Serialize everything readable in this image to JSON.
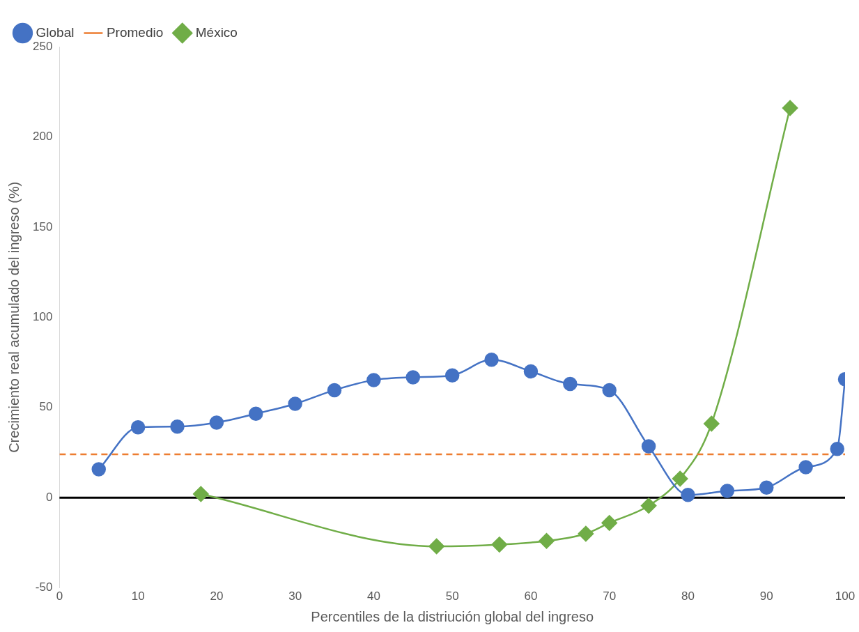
{
  "chart_data": {
    "type": "line",
    "xlabel": "Percentiles de la distriución global del ingreso",
    "ylabel": "Crecimiento real acumulado del ingreso (%)",
    "xlim": [
      0,
      100
    ],
    "xticks": [
      0,
      10,
      20,
      30,
      40,
      50,
      60,
      70,
      80,
      90,
      100
    ],
    "ylim": [
      -50,
      250
    ],
    "yticks": [
      -50,
      0,
      50,
      100,
      150,
      200,
      250
    ],
    "grid": false,
    "legend": "top left",
    "series": [
      {
        "name": "Global",
        "color": "#4472c4",
        "marker": "circle",
        "line_style": "solid",
        "x": [
          5,
          10,
          15,
          20,
          25,
          30,
          35,
          40,
          45,
          50,
          55,
          60,
          65,
          70,
          75,
          80,
          85,
          90,
          95,
          99,
          100
        ],
        "values": [
          15.7,
          39,
          39.4,
          41.6,
          46.5,
          52,
          59.6,
          65.2,
          66.7,
          67.8,
          76.5,
          70,
          63,
          59.6,
          28.5,
          1.5,
          3.7,
          5.6,
          16.9,
          27,
          65.6
        ]
      },
      {
        "name": "Promedio",
        "color": "#ed7d31",
        "marker": "none",
        "line_style": "dashed",
        "x": [
          0,
          100
        ],
        "values": [
          24,
          24
        ]
      },
      {
        "name": "México",
        "color": "#70ad47",
        "marker": "diamond",
        "line_style": "solid",
        "x": [
          18,
          48,
          56,
          62,
          67,
          70,
          75,
          79,
          83,
          93
        ],
        "values": [
          2,
          -27,
          -26,
          -24,
          -20,
          -14,
          -4.5,
          10.5,
          41,
          216
        ]
      }
    ],
    "ref_lines": [
      {
        "axis": "y",
        "value": 0,
        "color": "#000000",
        "line_style": "solid"
      }
    ]
  }
}
